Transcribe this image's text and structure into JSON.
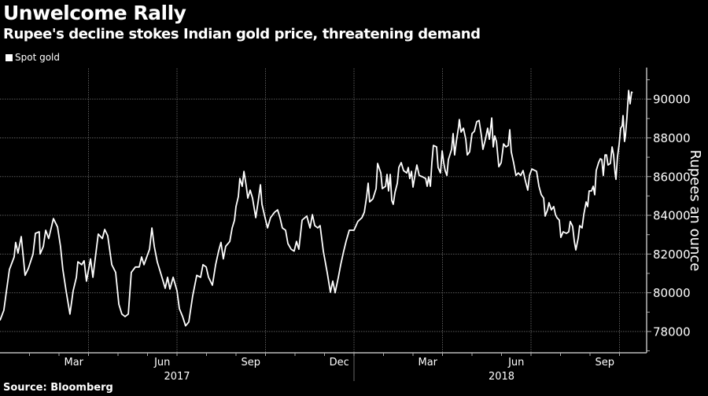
{
  "chart_data": {
    "type": "line",
    "title": "Unwelcome Rally",
    "subtitle": "Rupee's decline stokes Indian gold price, threatening demand",
    "source": "Source: Bloomberg",
    "xlabel": "",
    "ylabel": "Rupees an ounce",
    "x_unit": "months since Jan 1 2017",
    "xlim": [
      0,
      21.92
    ],
    "ylim": [
      76900,
      91590
    ],
    "grid": true,
    "legend_position": "top-left",
    "y_ticks": [
      78000,
      80000,
      82000,
      84000,
      86000,
      88000,
      90000
    ],
    "y_tick_labels": [
      "78000",
      "80000",
      "82000",
      "84000",
      "86000",
      "88000",
      "90000"
    ],
    "x_gridlines": [
      3,
      6,
      9,
      12,
      15,
      18,
      21
    ],
    "x_ticks": [
      {
        "label": "Mar",
        "x": 2.5
      },
      {
        "label": "Jun",
        "x": 5.5
      },
      {
        "label": "Sep",
        "x": 8.5
      },
      {
        "label": "Dec",
        "x": 11.5
      },
      {
        "label": "Mar",
        "x": 14.5
      },
      {
        "label": "Jun",
        "x": 17.5
      },
      {
        "label": "Sep",
        "x": 20.5
      }
    ],
    "years": [
      {
        "label": "2017",
        "x": 6
      },
      {
        "label": "2018",
        "x": 17
      }
    ],
    "year_separator": 12,
    "series": [
      {
        "name": "Spot gold",
        "color": "#ffffff",
        "x": [
          0,
          0.13,
          0.21,
          0.32,
          0.48,
          0.53,
          0.61,
          0.72,
          0.85,
          0.96,
          1.12,
          1.2,
          1.33,
          1.36,
          1.47,
          1.55,
          1.65,
          1.81,
          1.95,
          2.05,
          2.13,
          2.24,
          2.37,
          2.48,
          2.59,
          2.64,
          2.77,
          2.85,
          2.93,
          3.07,
          3.15,
          3.33,
          3.47,
          3.55,
          3.65,
          3.79,
          3.92,
          4.03,
          4.13,
          4.24,
          4.35,
          4.45,
          4.59,
          4.72,
          4.8,
          4.88,
          5.07,
          5.15,
          5.23,
          5.33,
          5.47,
          5.6,
          5.68,
          5.76,
          5.87,
          6,
          6.08,
          6.19,
          6.29,
          6.4,
          6.53,
          6.67,
          6.8,
          6.88,
          6.99,
          7.07,
          7.2,
          7.31,
          7.41,
          7.49,
          7.57,
          7.65,
          7.79,
          7.87,
          7.95,
          8,
          8.08,
          8.13,
          8.21,
          8.27,
          8.35,
          8.4,
          8.48,
          8.56,
          8.67,
          8.75,
          8.83,
          8.88,
          8.96,
          9.07,
          9.17,
          9.31,
          9.41,
          9.49,
          9.57,
          9.68,
          9.76,
          9.87,
          9.97,
          10.05,
          10.13,
          10.24,
          10.4,
          10.51,
          10.59,
          10.67,
          10.77,
          10.85,
          10.96,
          11.09,
          11.2,
          11.28,
          11.36,
          11.47,
          11.55,
          11.65,
          11.73,
          11.84,
          11.95,
          12,
          12.13,
          12.27,
          12.35,
          12.43,
          12.48,
          12.53,
          12.64,
          12.75,
          12.8,
          12.91,
          12.96,
          13.07,
          13.12,
          13.17,
          13.23,
          13.28,
          13.33,
          13.39,
          13.47,
          13.52,
          13.6,
          13.68,
          13.79,
          13.84,
          13.89,
          13.95,
          14,
          14.08,
          14.13,
          14.21,
          14.32,
          14.43,
          14.48,
          14.53,
          14.59,
          14.64,
          14.69,
          14.8,
          14.85,
          14.93,
          14.99,
          15.04,
          15.09,
          15.15,
          15.2,
          15.31,
          15.36,
          15.41,
          15.47,
          15.55,
          15.57,
          15.63,
          15.71,
          15.79,
          15.84,
          15.92,
          16,
          16.08,
          16.16,
          16.24,
          16.32,
          16.37,
          16.45,
          16.53,
          16.59,
          16.67,
          16.72,
          16.77,
          16.83,
          16.91,
          16.99,
          17.07,
          17.15,
          17.23,
          17.28,
          17.33,
          17.41,
          17.49,
          17.57,
          17.65,
          17.73,
          17.81,
          17.89,
          17.95,
          18.03,
          18.19,
          18.27,
          18.35,
          18.43,
          18.48,
          18.56,
          18.61,
          18.69,
          18.77,
          18.83,
          18.88,
          18.96,
          19.01,
          19.09,
          19.2,
          19.28,
          19.33,
          19.41,
          19.47,
          19.52,
          19.6,
          19.65,
          19.73,
          19.79,
          19.87,
          19.92,
          19.97,
          20.05,
          20.11,
          20.16,
          20.21,
          20.29,
          20.35,
          20.4,
          20.45,
          20.51,
          20.56,
          20.61,
          20.69,
          20.75,
          20.8,
          20.85,
          20.88,
          20.93,
          20.99,
          21.04,
          21.09,
          21.12,
          21.17,
          21.2,
          21.25,
          21.31,
          21.36,
          21.41,
          21.44
        ],
        "values": [
          78570,
          79100,
          80000,
          81200,
          81850,
          82600,
          82050,
          82900,
          80900,
          81250,
          82000,
          83070,
          83150,
          82000,
          82400,
          83230,
          82800,
          83830,
          83400,
          82400,
          81200,
          80100,
          78900,
          80100,
          80800,
          81600,
          81450,
          81650,
          80600,
          81750,
          80800,
          83030,
          82800,
          83270,
          82950,
          81450,
          81050,
          79400,
          78900,
          78770,
          78900,
          81050,
          81330,
          81330,
          81850,
          81450,
          82250,
          83350,
          82400,
          81600,
          80900,
          80230,
          80800,
          80190,
          80800,
          80100,
          79180,
          78770,
          78290,
          78490,
          79830,
          80900,
          80800,
          81450,
          81330,
          80800,
          80390,
          81450,
          82150,
          82600,
          81750,
          82400,
          82650,
          83350,
          83750,
          84450,
          84970,
          85900,
          85500,
          86270,
          85500,
          84890,
          85300,
          84890,
          83880,
          84690,
          85580,
          84570,
          84040,
          83350,
          83880,
          84160,
          84280,
          83880,
          83350,
          83230,
          82540,
          82250,
          82150,
          82650,
          82250,
          83750,
          83960,
          83350,
          84040,
          83470,
          83350,
          83470,
          82150,
          81050,
          80030,
          80600,
          80000,
          80800,
          81450,
          82150,
          82650,
          83230,
          83230,
          83230,
          83680,
          83880,
          84160,
          84970,
          85660,
          84690,
          84850,
          85380,
          86680,
          86190,
          85380,
          85500,
          86110,
          85260,
          86110,
          84770,
          84570,
          85180,
          85660,
          86470,
          86720,
          86310,
          86190,
          86470,
          85900,
          86270,
          85460,
          86190,
          86600,
          86060,
          85990,
          85900,
          85500,
          85990,
          85500,
          86720,
          87610,
          87530,
          86470,
          86190,
          87330,
          86720,
          86310,
          86060,
          86880,
          87410,
          88220,
          87120,
          87810,
          88620,
          88950,
          88300,
          88500,
          87930,
          87120,
          87280,
          88220,
          88340,
          88830,
          88900,
          88100,
          87410,
          87900,
          88500,
          87930,
          89030,
          87530,
          88100,
          87810,
          86510,
          86720,
          87690,
          87530,
          87610,
          88420,
          87280,
          86720,
          86060,
          86190,
          86060,
          86310,
          85780,
          85300,
          86060,
          86390,
          86270,
          85500,
          85060,
          84890,
          83960,
          84280,
          84650,
          84280,
          84450,
          84040,
          83880,
          83750,
          82860,
          83150,
          83070,
          83150,
          83680,
          83430,
          82650,
          82210,
          82820,
          83470,
          83350,
          84040,
          84690,
          84450,
          85260,
          85260,
          85500,
          85060,
          86310,
          86720,
          86920,
          86880,
          86060,
          87120,
          87120,
          86600,
          86680,
          87530,
          87120,
          86190,
          85860,
          87000,
          87690,
          88500,
          88620,
          89150,
          87810,
          88100,
          89030,
          90450,
          89760,
          90370,
          90320
        ]
      }
    ]
  }
}
